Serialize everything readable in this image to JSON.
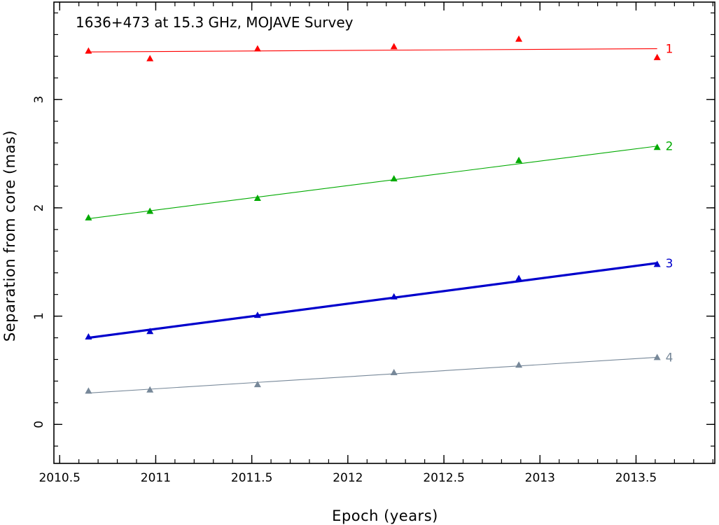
{
  "chart_data": {
    "type": "scatter",
    "title": "1636+473 at 15.3 GHz, MOJAVE Survey",
    "xlabel": "Epoch (years)",
    "ylabel": "Separation from core (mas)",
    "xlim": [
      2010.47,
      2013.91
    ],
    "ylim": [
      -0.36,
      3.9
    ],
    "x_ticks": [
      {
        "value": 2010.5,
        "label": "2010.5"
      },
      {
        "value": 2011,
        "label": "2011"
      },
      {
        "value": 2011.5,
        "label": "2011.5"
      },
      {
        "value": 2012,
        "label": "2012"
      },
      {
        "value": 2012.5,
        "label": "2012.5"
      },
      {
        "value": 2013,
        "label": "2013"
      },
      {
        "value": 2013.5,
        "label": "2013.5"
      }
    ],
    "y_ticks": [
      {
        "value": 0,
        "label": "0"
      },
      {
        "value": 1,
        "label": "1"
      },
      {
        "value": 2,
        "label": "2"
      },
      {
        "value": 3,
        "label": "3"
      }
    ],
    "x_minor_step": 0.1,
    "y_minor_step": 0.2,
    "grid": false,
    "series": [
      {
        "name": "1",
        "color": "#ff0000",
        "fit_width": "thin",
        "x": [
          2010.65,
          2010.97,
          2011.53,
          2012.24,
          2012.89,
          2013.61
        ],
        "y": [
          3.45,
          3.38,
          3.47,
          3.49,
          3.56,
          3.39
        ],
        "fit": [
          [
            2010.65,
            3.44
          ],
          [
            2013.61,
            3.47
          ]
        ]
      },
      {
        "name": "2",
        "color": "#00aa00",
        "fit_width": "thin",
        "x": [
          2010.65,
          2010.97,
          2011.53,
          2012.24,
          2012.89,
          2013.61
        ],
        "y": [
          1.91,
          1.97,
          2.09,
          2.27,
          2.44,
          2.56
        ],
        "fit": [
          [
            2010.65,
            1.9
          ],
          [
            2013.61,
            2.57
          ]
        ]
      },
      {
        "name": "3",
        "color": "#0000cc",
        "fit_width": "thick",
        "x": [
          2010.65,
          2010.97,
          2011.53,
          2012.24,
          2012.89,
          2013.61
        ],
        "y": [
          0.81,
          0.86,
          1.01,
          1.18,
          1.35,
          1.48
        ],
        "fit": [
          [
            2010.65,
            0.8
          ],
          [
            2013.61,
            1.49
          ]
        ]
      },
      {
        "name": "4",
        "color": "#778899",
        "fit_width": "thin",
        "x": [
          2010.65,
          2010.97,
          2011.53,
          2012.24,
          2012.89,
          2013.61
        ],
        "y": [
          0.31,
          0.32,
          0.37,
          0.48,
          0.55,
          0.62
        ],
        "fit": [
          [
            2010.65,
            0.29
          ],
          [
            2013.61,
            0.62
          ]
        ]
      }
    ]
  }
}
